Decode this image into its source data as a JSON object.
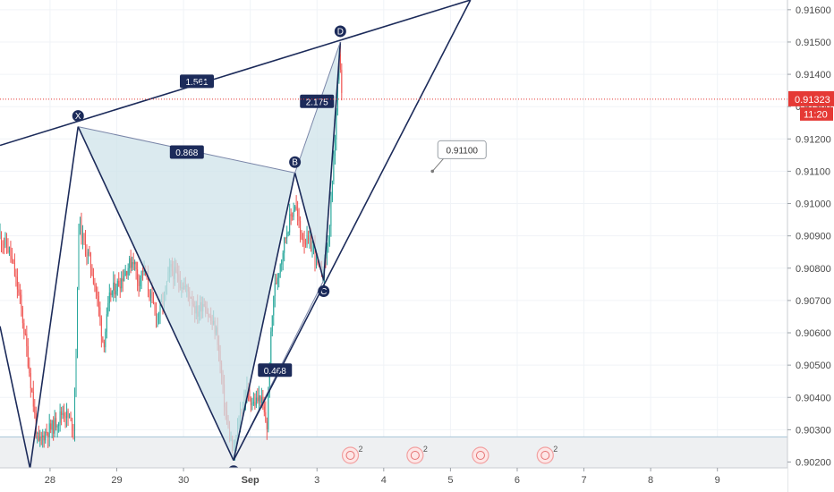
{
  "chart_data": {
    "type": "candlestick",
    "x_axis": {
      "labels": [
        {
          "label": "28",
          "t": 0.4
        },
        {
          "label": "29",
          "t": 1.4
        },
        {
          "label": "30",
          "t": 2.4
        },
        {
          "label": "Sep",
          "t": 3.4
        },
        {
          "label": "3",
          "t": 4.4
        },
        {
          "label": "4",
          "t": 5.4
        },
        {
          "label": "5",
          "t": 6.4
        },
        {
          "label": "6",
          "t": 7.4
        },
        {
          "label": "7",
          "t": 8.4
        },
        {
          "label": "8",
          "t": 9.4
        },
        {
          "label": "9",
          "t": 10.4
        }
      ],
      "range": [
        -0.35,
        11.45
      ]
    },
    "y_axis": {
      "labels": [
        "0.91600",
        "0.91500",
        "0.91400",
        "0.91300",
        "0.91200",
        "0.91100",
        "0.91000",
        "0.90900",
        "0.90800",
        "0.90700",
        "0.90600",
        "0.90500",
        "0.90400",
        "0.90300",
        "0.90200"
      ],
      "range": [
        0.90182,
        0.9163
      ]
    },
    "price_tag": {
      "value": "0.91323",
      "countdown": "11:20",
      "color": "#e53935"
    },
    "horizontal_line": {
      "value": 0.90278,
      "color": "#a7c4d6"
    },
    "pattern": {
      "points": [
        {
          "label": "X",
          "t": 0.82,
          "y": 0.91238
        },
        {
          "label": "A",
          "t": 3.15,
          "y": 0.90205
        },
        {
          "label": "B",
          "t": 4.07,
          "y": 0.91095
        },
        {
          "label": "C",
          "t": 4.5,
          "y": 0.90762
        },
        {
          "label": "D",
          "t": 4.75,
          "y": 0.915
        }
      ],
      "ratios": [
        {
          "value": "1.561",
          "t": 2.6,
          "y": 0.91377
        },
        {
          "value": "0.868",
          "t": 2.45,
          "y": 0.91158
        },
        {
          "value": "0.468",
          "t": 3.77,
          "y": 0.90483
        },
        {
          "value": "2.175",
          "t": 4.4,
          "y": 0.91315
        }
      ],
      "fill": "#cfe3ea",
      "stroke": "#1c2b5a"
    },
    "trend_lines": [
      {
        "from": {
          "t": -0.35,
          "y": 0.9118
        },
        "to": {
          "t": 6.7,
          "y": 0.9163
        }
      },
      {
        "from": {
          "t": 3.15,
          "y": 0.90205
        },
        "to": {
          "t": 6.7,
          "y": 0.9163
        }
      },
      {
        "from": {
          "t": -0.35,
          "y": 0.9062
        },
        "to": {
          "t": 0.1,
          "y": 0.9018
        }
      },
      {
        "from": {
          "t": 0.1,
          "y": 0.9018
        },
        "to": {
          "t": 0.82,
          "y": 0.91238
        }
      }
    ],
    "callout": {
      "text": "0.91100",
      "t": 6.13,
      "y": 0.911
    },
    "event_markers": [
      {
        "t": 4.9,
        "count": "2"
      },
      {
        "t": 5.87,
        "count": "2"
      },
      {
        "t": 6.85,
        "count": ""
      },
      {
        "t": 7.82,
        "count": "2"
      }
    ],
    "series_colors": {
      "up": "#26a69a",
      "down": "#ef5350"
    }
  }
}
